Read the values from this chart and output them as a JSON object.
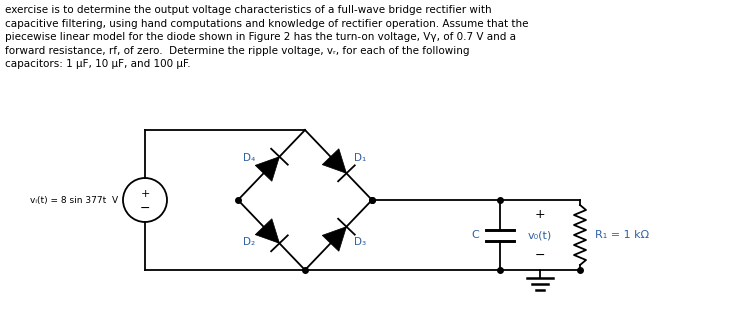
{
  "text_paragraph": "exercise is to determine the output voltage characteristics of a full-wave bridge rectifier with\ncapacitive filtering, using hand computations and knowledge of rectifier operation. Assume that the\npiecewise linear model for the diode shown in Figure 2 has the turn-on voltage, Vγ, of 0.7 V and a\nforward resistance, rf, of zero.  Determine the ripple voltage, vᵣ, for each of the following\ncapacitors: 1 μF, 10 μF, and 100 μF.",
  "bg_color": "#ffffff",
  "line_color": "#000000",
  "text_color": "#000000",
  "label_color": "#3060a0",
  "source_label": "vᵢ(t) = 8 sin 377t  V",
  "D1_label": "D₁",
  "D2_label": "D₂",
  "D3_label": "D₃",
  "D4_label": "D₄",
  "C_label": "C",
  "vo_label": "v₀(t)",
  "R1_label": "R₁ = 1 kΩ",
  "plus_sign": "+",
  "minus_sign": "−"
}
